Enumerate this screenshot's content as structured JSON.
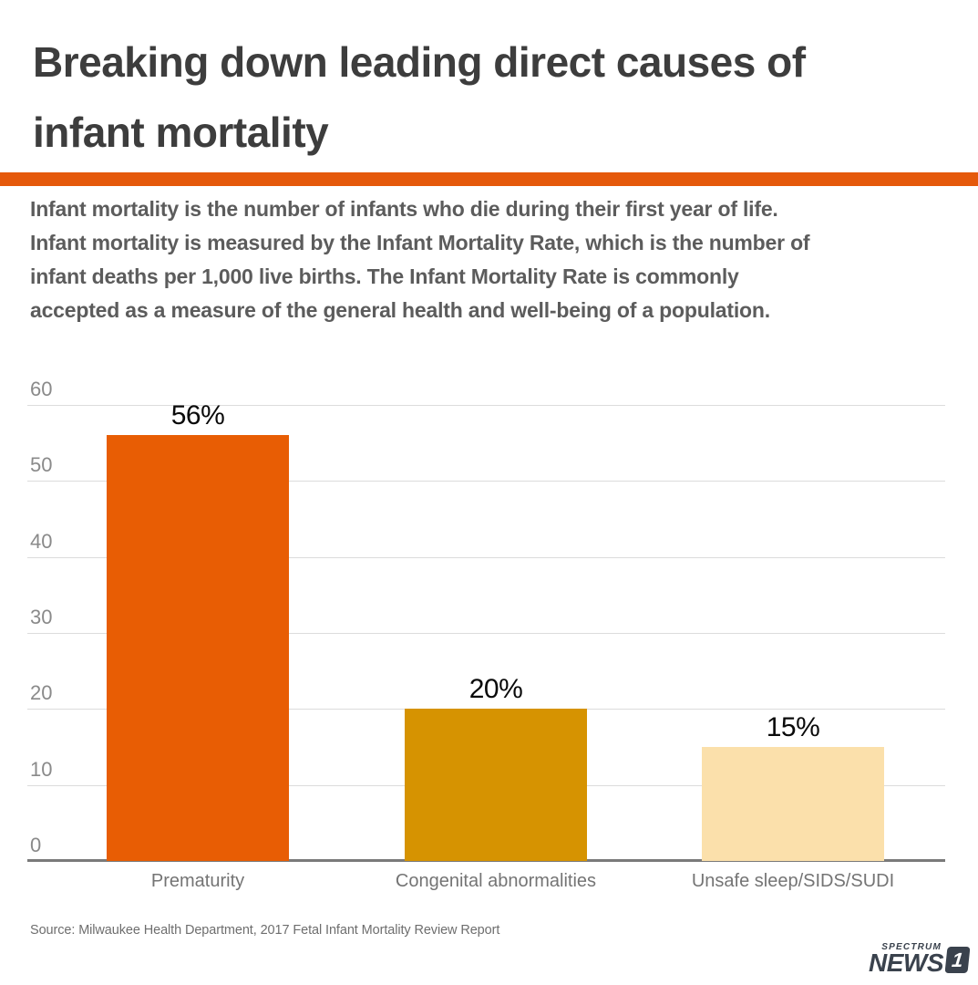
{
  "header": {
    "title_lines": [
      "Breaking down leading direct causes of",
      "infant mortality"
    ],
    "accent_color": "#E5590B"
  },
  "description": {
    "lines": [
      "Infant mortality is the number of infants who die during their first year of life.",
      "Infant mortality is measured by the Infant Mortality Rate, which is the number of",
      "infant deaths per 1,000 live births.  The Infant Mortality Rate is commonly",
      "accepted as a measure of the general health and well-being of a population."
    ]
  },
  "chart_data": {
    "type": "bar",
    "categories": [
      "Prematurity",
      "Congenital abnormalities",
      "Unsafe sleep/SIDS/SUDI"
    ],
    "values": [
      56,
      20,
      15
    ],
    "value_labels": [
      "56%",
      "20%",
      "15%"
    ],
    "bar_colors": [
      "#E85D04",
      "#D69301",
      "#FBE0AB"
    ],
    "title": "",
    "xlabel": "",
    "ylabel": "",
    "ylim": [
      0,
      60
    ],
    "yticks": [
      0,
      10,
      20,
      30,
      40,
      50,
      60
    ],
    "grid": true,
    "gridline_color": "#DCDCDC",
    "axis_line_color": "#7A7A7A",
    "legend": false
  },
  "footer": {
    "source": "Source: Milwaukee Health Department, 2017 Fetal Infant Mortality Review Report",
    "logo": {
      "brand": "SPECTRUM",
      "name": "NEWS",
      "number": "1",
      "color": "#3A424D"
    }
  }
}
